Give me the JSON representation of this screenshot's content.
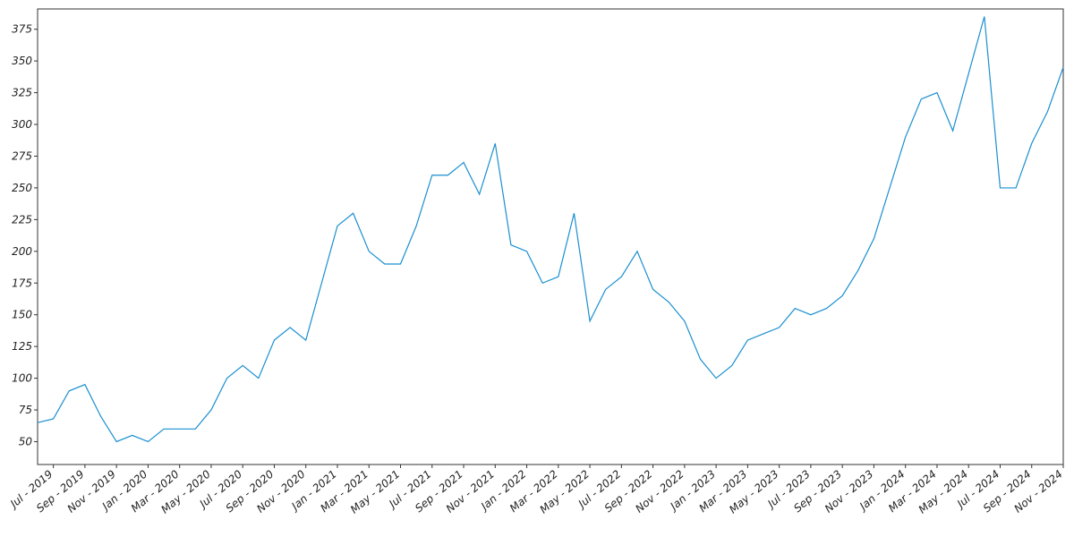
{
  "chart_data": {
    "type": "line",
    "x": [
      "2019-06",
      "2019-07",
      "2019-08",
      "2019-09",
      "2019-10",
      "2019-11",
      "2019-12",
      "2020-01",
      "2020-02",
      "2020-03",
      "2020-04",
      "2020-05",
      "2020-06",
      "2020-07",
      "2020-08",
      "2020-09",
      "2020-10",
      "2020-11",
      "2020-12",
      "2021-01",
      "2021-02",
      "2021-03",
      "2021-04",
      "2021-05",
      "2021-06",
      "2021-07",
      "2021-08",
      "2021-09",
      "2021-10",
      "2021-11",
      "2021-12",
      "2022-01",
      "2022-02",
      "2022-03",
      "2022-04",
      "2022-05",
      "2022-06",
      "2022-07",
      "2022-08",
      "2022-09",
      "2022-10",
      "2022-11",
      "2022-12",
      "2023-01",
      "2023-02",
      "2023-03",
      "2023-04",
      "2023-05",
      "2023-06",
      "2023-07",
      "2023-08",
      "2023-09",
      "2023-10",
      "2023-11",
      "2023-12",
      "2024-01",
      "2024-02",
      "2024-03",
      "2024-04",
      "2024-05",
      "2024-06",
      "2024-07",
      "2024-08",
      "2024-09",
      "2024-10",
      "2024-11"
    ],
    "series": [
      {
        "color": "#1a8fd0",
        "values": [
          65,
          68,
          90,
          95,
          70,
          50,
          55,
          50,
          60,
          60,
          60,
          75,
          100,
          110,
          100,
          130,
          140,
          130,
          175,
          220,
          230,
          200,
          190,
          190,
          220,
          260,
          260,
          270,
          245,
          285,
          205,
          200,
          175,
          180,
          230,
          145,
          170,
          180,
          200,
          170,
          160,
          145,
          115,
          100,
          110,
          130,
          135,
          140,
          155,
          150,
          155,
          165,
          185,
          210,
          250,
          290,
          320,
          325,
          295,
          340,
          385,
          250,
          250,
          285,
          310,
          345
        ]
      }
    ],
    "xlim": [
      "2019-06",
      "2024-11"
    ],
    "xticks": [
      {
        "value": "2019-07",
        "label": "Jul - 2019"
      },
      {
        "value": "2019-09",
        "label": "Sep - 2019"
      },
      {
        "value": "2019-11",
        "label": "Nov - 2019"
      },
      {
        "value": "2020-01",
        "label": "Jan - 2020"
      },
      {
        "value": "2020-03",
        "label": "Mar - 2020"
      },
      {
        "value": "2020-05",
        "label": "May - 2020"
      },
      {
        "value": "2020-07",
        "label": "Jul - 2020"
      },
      {
        "value": "2020-09",
        "label": "Sep - 2020"
      },
      {
        "value": "2020-11",
        "label": "Nov - 2020"
      },
      {
        "value": "2021-01",
        "label": "Jan - 2021"
      },
      {
        "value": "2021-03",
        "label": "Mar - 2021"
      },
      {
        "value": "2021-05",
        "label": "May - 2021"
      },
      {
        "value": "2021-07",
        "label": "Jul - 2021"
      },
      {
        "value": "2021-09",
        "label": "Sep - 2021"
      },
      {
        "value": "2021-11",
        "label": "Nov - 2021"
      },
      {
        "value": "2022-01",
        "label": "Jan - 2022"
      },
      {
        "value": "2022-03",
        "label": "Mar - 2022"
      },
      {
        "value": "2022-05",
        "label": "May - 2022"
      },
      {
        "value": "2022-07",
        "label": "Jul - 2022"
      },
      {
        "value": "2022-09",
        "label": "Sep - 2022"
      },
      {
        "value": "2022-11",
        "label": "Nov - 2022"
      },
      {
        "value": "2023-01",
        "label": "Jan - 2023"
      },
      {
        "value": "2023-03",
        "label": "Mar - 2023"
      },
      {
        "value": "2023-05",
        "label": "May - 2023"
      },
      {
        "value": "2023-07",
        "label": "Jul - 2023"
      },
      {
        "value": "2023-09",
        "label": "Sep - 2023"
      },
      {
        "value": "2023-11",
        "label": "Nov - 2023"
      },
      {
        "value": "2024-01",
        "label": "Jan - 2024"
      },
      {
        "value": "2024-03",
        "label": "Mar - 2024"
      },
      {
        "value": "2024-05",
        "label": "May - 2024"
      },
      {
        "value": "2024-07",
        "label": "Jul - 2024"
      },
      {
        "value": "2024-09",
        "label": "Sep - 2024"
      },
      {
        "value": "2024-11",
        "label": "Nov - 2024"
      }
    ],
    "ylim": [
      32,
      391
    ],
    "yticks": [
      50,
      75,
      100,
      125,
      150,
      175,
      200,
      225,
      250,
      275,
      300,
      325,
      350,
      375
    ]
  }
}
